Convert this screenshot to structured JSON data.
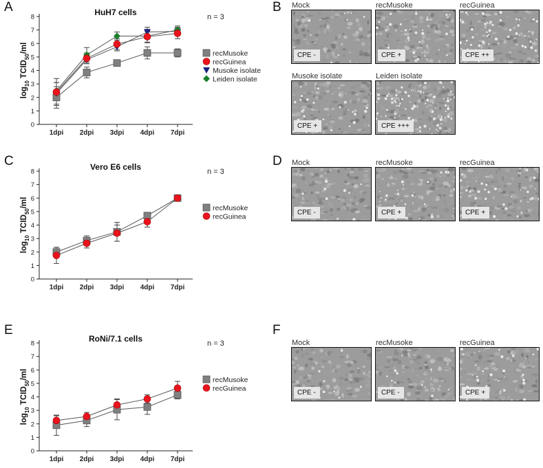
{
  "panels": {
    "A": "A",
    "B": "B",
    "C": "C",
    "D": "D",
    "E": "E",
    "F": "F"
  },
  "colors": {
    "recMusoke": "#808080",
    "recGuinea": "#e8141e",
    "musoke_isolate": "#1a237e",
    "leiden_isolate": "#1b7d2a",
    "line": "#555555",
    "error": "#444444"
  },
  "chart_data": [
    {
      "type": "line",
      "panel": "A",
      "title": "HuH7 cells",
      "annotation": "n = 3",
      "xlabel": "",
      "ylabel": "log10 TCID50/ml",
      "ylabel_parts": {
        "pre": "log",
        "sub1": "10",
        "mid": " TCID",
        "sub2": "50",
        "post": "/ml"
      },
      "categories": [
        "1dpi",
        "2dpi",
        "3dpi",
        "4dpi",
        "7dpi"
      ],
      "ylim": [
        0,
        8
      ],
      "yticks": [
        "0",
        "1",
        "2",
        "3",
        "4",
        "5",
        "6",
        "7",
        "8"
      ],
      "legend_position": "right",
      "series": [
        {
          "name": "recMusoke",
          "marker": "square",
          "color_key": "recMusoke",
          "values": [
            2.0,
            3.85,
            4.55,
            5.3,
            5.3
          ],
          "errors": [
            0.8,
            0.4,
            0.1,
            0.45,
            0.3
          ]
        },
        {
          "name": "recGuinea",
          "marker": "circle",
          "color_key": "recGuinea",
          "values": [
            2.4,
            4.9,
            5.95,
            6.5,
            6.75
          ],
          "errors": [
            1.0,
            0.4,
            0.4,
            0.4,
            0.4
          ]
        },
        {
          "name": "Musoke isolate",
          "marker": "triangle-down",
          "color_key": "musoke_isolate",
          "values": [
            2.3,
            4.8,
            5.75,
            6.85,
            6.9
          ],
          "errors": [
            0.8,
            0.3,
            0.3,
            0.35,
            0.3
          ]
        },
        {
          "name": "Leiden isolate",
          "marker": "diamond",
          "color_key": "leiden_isolate",
          "values": [
            2.5,
            5.15,
            6.55,
            6.55,
            7.0
          ],
          "errors": [
            0.6,
            0.55,
            0.3,
            0.5,
            0.3
          ]
        }
      ]
    },
    {
      "type": "line",
      "panel": "C",
      "title": "Vero E6 cells",
      "annotation": "n = 3",
      "xlabel": "",
      "ylabel": "log10 TCID50/ml",
      "ylabel_parts": {
        "pre": "log",
        "sub1": "10",
        "mid": " TCID",
        "sub2": "50",
        "post": "/ml"
      },
      "categories": [
        "1dpi",
        "2dpi",
        "3dpi",
        "4dpi",
        "7dpi"
      ],
      "ylim": [
        0,
        8
      ],
      "yticks": [
        "0",
        "1",
        "2",
        "3",
        "4",
        "5",
        "6",
        "7",
        "8"
      ],
      "legend_position": "right",
      "series": [
        {
          "name": "recMusoke",
          "marker": "square",
          "color_key": "recMusoke",
          "values": [
            2.0,
            2.85,
            3.5,
            4.7,
            6.0
          ],
          "errors": [
            0.35,
            0.35,
            0.7,
            0.1,
            0.15
          ]
        },
        {
          "name": "recGuinea",
          "marker": "circle",
          "color_key": "recGuinea",
          "values": [
            1.75,
            2.65,
            3.4,
            4.25,
            6.0
          ],
          "errors": [
            0.6,
            0.35,
            0.6,
            0.4,
            0.2
          ]
        }
      ]
    },
    {
      "type": "line",
      "panel": "E",
      "title": "RoNi/7.1 cells",
      "annotation": "n = 3",
      "xlabel": "",
      "ylabel": "log10 TCID50/ml",
      "ylabel_parts": {
        "pre": "log",
        "sub1": "10",
        "mid": " TCID",
        "sub2": "50",
        "post": "/ml"
      },
      "categories": [
        "1dpi",
        "2dpi",
        "3dpi",
        "4dpi",
        "7dpi"
      ],
      "ylim": [
        0,
        8
      ],
      "yticks": [
        "0",
        "1",
        "2",
        "3",
        "4",
        "5",
        "6",
        "7",
        "8"
      ],
      "legend_position": "right",
      "series": [
        {
          "name": "recMusoke",
          "marker": "square",
          "color_key": "recMusoke",
          "values": [
            1.9,
            2.25,
            3.05,
            3.25,
            4.15
          ],
          "errors": [
            0.75,
            0.45,
            0.75,
            0.55,
            0.3
          ]
        },
        {
          "name": "recGuinea",
          "marker": "circle",
          "color_key": "recGuinea",
          "values": [
            2.25,
            2.55,
            3.4,
            3.85,
            4.65
          ],
          "errors": [
            0.35,
            0.3,
            0.45,
            0.3,
            0.5
          ]
        }
      ]
    }
  ],
  "micrographs": {
    "B": [
      {
        "label": "Mock",
        "cpe": "CPE -"
      },
      {
        "label": "recMusoke",
        "cpe": "CPE +"
      },
      {
        "label": "recGuinea",
        "cpe": "CPE ++"
      },
      {
        "label": "Musoke isolate",
        "cpe": "CPE +"
      },
      {
        "label": "Leiden isolate",
        "cpe": "CPE +++"
      }
    ],
    "D": [
      {
        "label": "Mock",
        "cpe": "CPE -"
      },
      {
        "label": "recMusoke",
        "cpe": "CPE +"
      },
      {
        "label": "recGuinea",
        "cpe": "CPE +"
      }
    ],
    "F": [
      {
        "label": "Mock",
        "cpe": "CPE -"
      },
      {
        "label": "recMusoke",
        "cpe": "CPE -"
      },
      {
        "label": "recGuinea",
        "cpe": "CPE +"
      }
    ]
  }
}
